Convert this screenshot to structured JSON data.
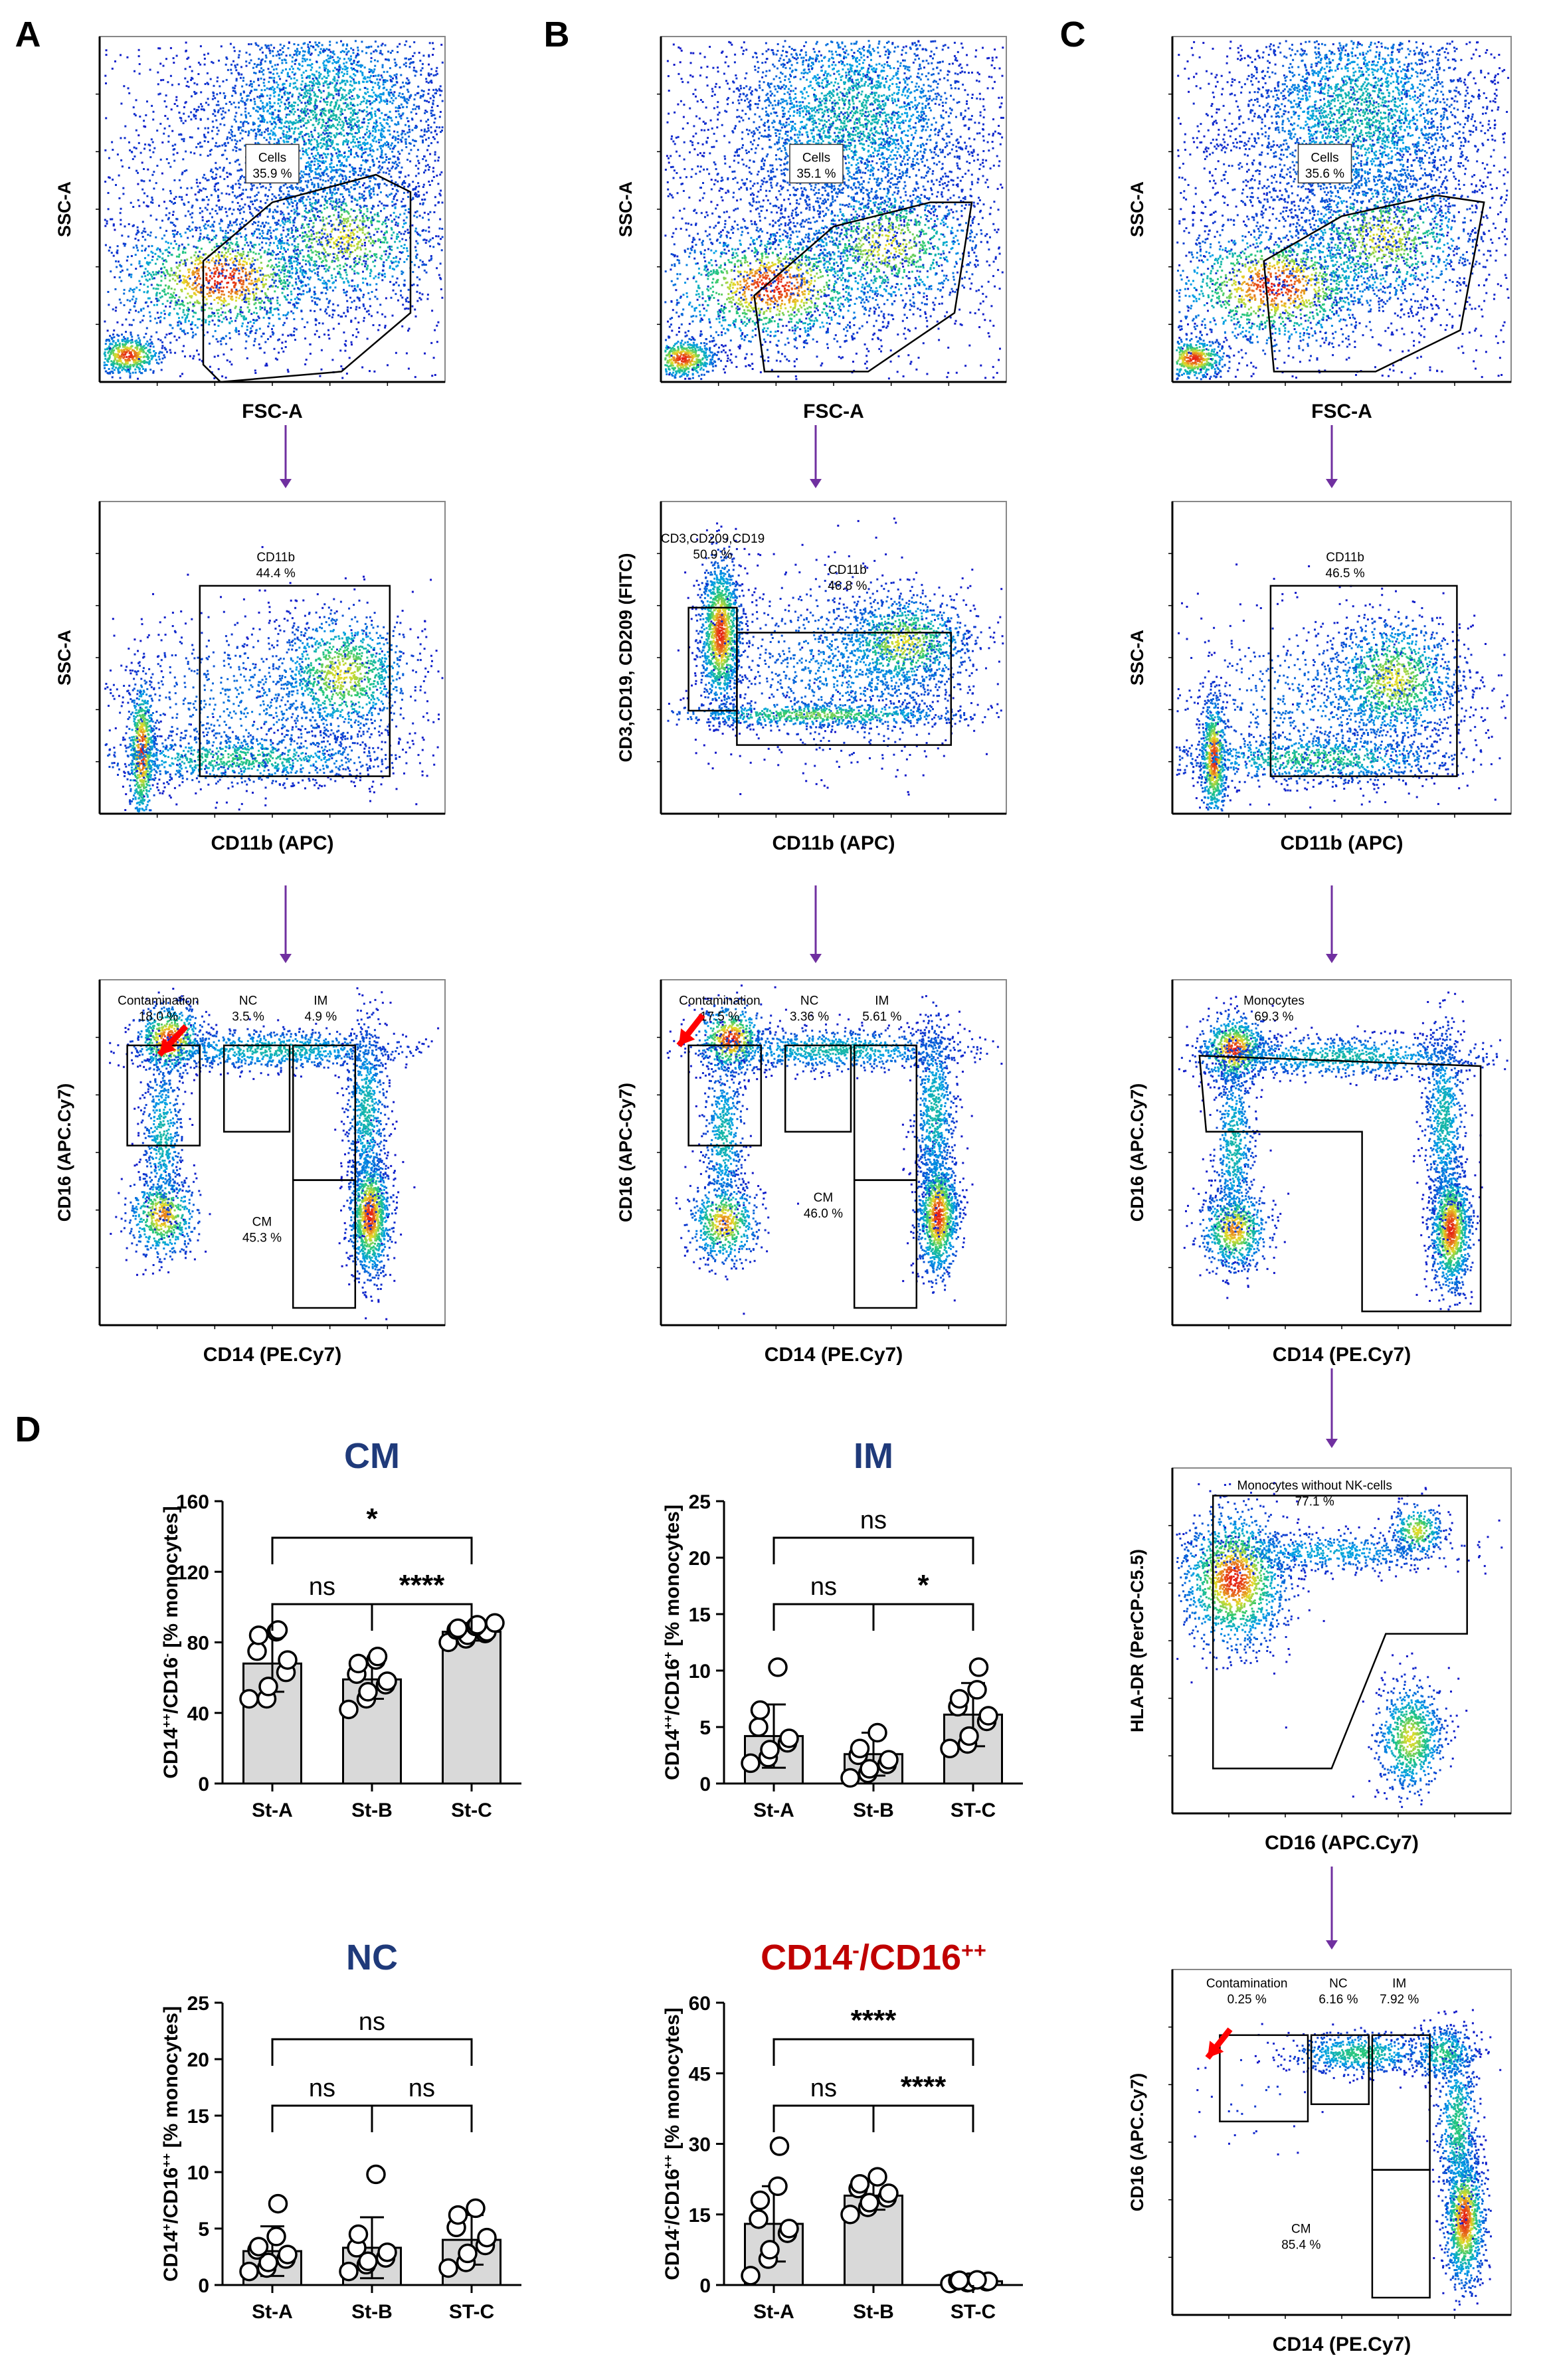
{
  "panel_letters": {
    "A": "A",
    "B": "B",
    "C": "C",
    "D": "D"
  },
  "flow_plots": {
    "a1": {
      "xlabel": "FSC-A",
      "ylabel": "SSC-A",
      "gates": [
        {
          "label": "Cells",
          "value": "35.9 %"
        }
      ]
    },
    "b1": {
      "xlabel": "FSC-A",
      "ylabel": "SSC-A",
      "gates": [
        {
          "label": "Cells",
          "value": "35.1 %"
        }
      ]
    },
    "c1": {
      "xlabel": "FSC-A",
      "ylabel": "SSC-A",
      "gates": [
        {
          "label": "Cells",
          "value": "35.6 %"
        }
      ]
    },
    "a2": {
      "xlabel": "CD11b (APC)",
      "ylabel": "SSC-A",
      "gates": [
        {
          "label": "CD11b",
          "value": "44.4 %"
        }
      ]
    },
    "b2": {
      "xlabel": "CD11b (APC)",
      "ylabel": "CD3,CD19, CD209 (FITC)",
      "gates": [
        {
          "label": "CD3,CD209,CD19",
          "value": "50.9 %"
        },
        {
          "label": "CD11b",
          "value": "46.8 %"
        }
      ]
    },
    "c2": {
      "xlabel": "CD11b (APC)",
      "ylabel": "SSC-A",
      "gates": [
        {
          "label": "CD11b",
          "value": "46.5 %"
        }
      ]
    },
    "a3": {
      "xlabel": "CD14 (PE.Cy7)",
      "ylabel": "CD16 (APC.Cy7)",
      "gates": [
        {
          "label": "Contamination",
          "value": "18.0 %"
        },
        {
          "label": "NC",
          "value": "3.5 %"
        },
        {
          "label": "IM",
          "value": "4.9 %"
        },
        {
          "label": "CM",
          "value": "45.3 %"
        }
      ]
    },
    "b3": {
      "xlabel": "CD14 (PE.Cy7)",
      "ylabel": "CD16 (APC-Cy7)",
      "gates": [
        {
          "label": "Contamination",
          "value": "17.5 %"
        },
        {
          "label": "NC",
          "value": "3.36 %"
        },
        {
          "label": "IM",
          "value": "5.61 %"
        },
        {
          "label": "CM",
          "value": "46.0 %"
        }
      ]
    },
    "c3": {
      "xlabel": "CD14 (PE.Cy7)",
      "ylabel": "CD16 (APC.Cy7)",
      "gates": [
        {
          "label": "Monocytes",
          "value": "69.3 %"
        }
      ]
    },
    "c4": {
      "xlabel": "CD16 (APC.Cy7)",
      "ylabel": "HLA-DR (PerCP-C5.5)",
      "gates": [
        {
          "label": "Monocytes without NK-cells",
          "value": "77.1 %"
        }
      ]
    },
    "c5": {
      "xlabel": "CD14 (PE.Cy7)",
      "ylabel": "CD16 (APC.Cy7)",
      "gates": [
        {
          "label": "Contamination",
          "value": "0.25 %"
        },
        {
          "label": "NC",
          "value": "6.16 %"
        },
        {
          "label": "IM",
          "value": "7.92 %"
        },
        {
          "label": "CM",
          "value": "85.4 %"
        }
      ]
    }
  },
  "colors": {
    "bar": "#d9d9d9",
    "title_blue": "#1f3a7a",
    "title_red": "#c00000",
    "arrow": "#7030a0",
    "red_arrow": "#ff0000"
  },
  "chart_data": [
    {
      "type": "bar",
      "title": "CM",
      "ylabel_main": "CD14",
      "ylabel_sup1": "++",
      "ylabel_mid": "/CD16",
      "ylabel_sup2": "-",
      "ylabel_tail": " [% monocytes]",
      "categories": [
        "St-A",
        "St-B",
        "St-C"
      ],
      "values": [
        68,
        59,
        86
      ],
      "sd": [
        16,
        11,
        5
      ],
      "ylim": [
        0,
        160
      ],
      "yticks": [
        0,
        40,
        80,
        120,
        160
      ],
      "points": [
        [
          48,
          48,
          55,
          63,
          70,
          75,
          84,
          86,
          87
        ],
        [
          42,
          48,
          52,
          56,
          58,
          62,
          68,
          70,
          72
        ],
        [
          80,
          82,
          84,
          85,
          86,
          87,
          88,
          89,
          90,
          91
        ]
      ],
      "brackets": [
        {
          "from": 0,
          "to": 1,
          "label": "ns",
          "level": 0
        },
        {
          "from": 1,
          "to": 2,
          "label": "****",
          "level": 0
        },
        {
          "from": 0,
          "to": 2,
          "label": "*",
          "level": 1
        }
      ]
    },
    {
      "type": "bar",
      "title": "IM",
      "ylabel_main": "CD14",
      "ylabel_sup1": "++",
      "ylabel_mid": "/CD16",
      "ylabel_sup2": "+",
      "ylabel_tail": " [% monocytes]",
      "categories": [
        "St-A",
        "St-B",
        "ST-C"
      ],
      "values": [
        4.2,
        2.6,
        6.1
      ],
      "sd": [
        2.8,
        1.9,
        2.8
      ],
      "ylim": [
        0,
        25
      ],
      "yticks": [
        0,
        5,
        10,
        15,
        20,
        25
      ],
      "points": [
        [
          1.8,
          2.3,
          3.0,
          3.6,
          4.0,
          5.0,
          6.5,
          10.3
        ],
        [
          0.5,
          0.9,
          1.3,
          1.7,
          2.1,
          2.5,
          3.1,
          4.5
        ],
        [
          3.1,
          3.5,
          4.2,
          5.5,
          6.0,
          6.8,
          7.5,
          8.3,
          10.3
        ]
      ],
      "brackets": [
        {
          "from": 0,
          "to": 1,
          "label": "ns",
          "level": 0
        },
        {
          "from": 1,
          "to": 2,
          "label": "*",
          "level": 0
        },
        {
          "from": 0,
          "to": 2,
          "label": "ns",
          "level": 1
        }
      ]
    },
    {
      "type": "bar",
      "title": "NC",
      "ylabel_main": "CD14",
      "ylabel_sup1": "+",
      "ylabel_mid": "/CD16",
      "ylabel_sup2": "++",
      "ylabel_tail": " [% monocytes]",
      "categories": [
        "St-A",
        "St-B",
        "ST-C"
      ],
      "values": [
        3.0,
        3.3,
        4.0
      ],
      "sd": [
        2.2,
        2.7,
        2.2
      ],
      "ylim": [
        0,
        25
      ],
      "yticks": [
        0,
        5,
        10,
        15,
        20,
        25
      ],
      "points": [
        [
          1.2,
          1.5,
          2.0,
          2.3,
          2.7,
          3.1,
          3.4,
          4.3,
          7.2
        ],
        [
          1.2,
          1.8,
          2.1,
          2.4,
          2.9,
          3.3,
          4.5,
          9.8
        ],
        [
          1.5,
          2.0,
          2.8,
          3.5,
          4.2,
          5.1,
          6.2,
          6.8
        ]
      ],
      "brackets": [
        {
          "from": 0,
          "to": 1,
          "label": "ns",
          "level": 0
        },
        {
          "from": 1,
          "to": 2,
          "label": "ns",
          "level": 0
        },
        {
          "from": 0,
          "to": 2,
          "label": "ns",
          "level": 1
        }
      ]
    },
    {
      "type": "bar",
      "title": "CD14",
      "title_sup1": "-",
      "title_mid": "/CD16",
      "title_sup2": "++",
      "ylabel_main": "CD14",
      "ylabel_sup1": "-",
      "ylabel_mid": "/CD16",
      "ylabel_sup2": "++",
      "ylabel_tail": " [% monocytes]",
      "categories": [
        "St-A",
        "St-B",
        "ST-C"
      ],
      "values": [
        13,
        19,
        0.8
      ],
      "sd": [
        8,
        3,
        0.4
      ],
      "ylim": [
        0,
        60
      ],
      "yticks": [
        0,
        15,
        30,
        45,
        60
      ],
      "points": [
        [
          2.0,
          5.5,
          7.5,
          11,
          12,
          14,
          18,
          21,
          29.5
        ],
        [
          15,
          16.5,
          17.5,
          18.5,
          19.5,
          20.5,
          21.5,
          23
        ],
        [
          0.3,
          0.5,
          0.6,
          0.7,
          0.8,
          0.9,
          1.0,
          1.1
        ]
      ],
      "brackets": [
        {
          "from": 0,
          "to": 1,
          "label": "ns",
          "level": 0
        },
        {
          "from": 1,
          "to": 2,
          "label": "****",
          "level": 0
        },
        {
          "from": 0,
          "to": 2,
          "label": "****",
          "level": 1
        }
      ]
    }
  ]
}
